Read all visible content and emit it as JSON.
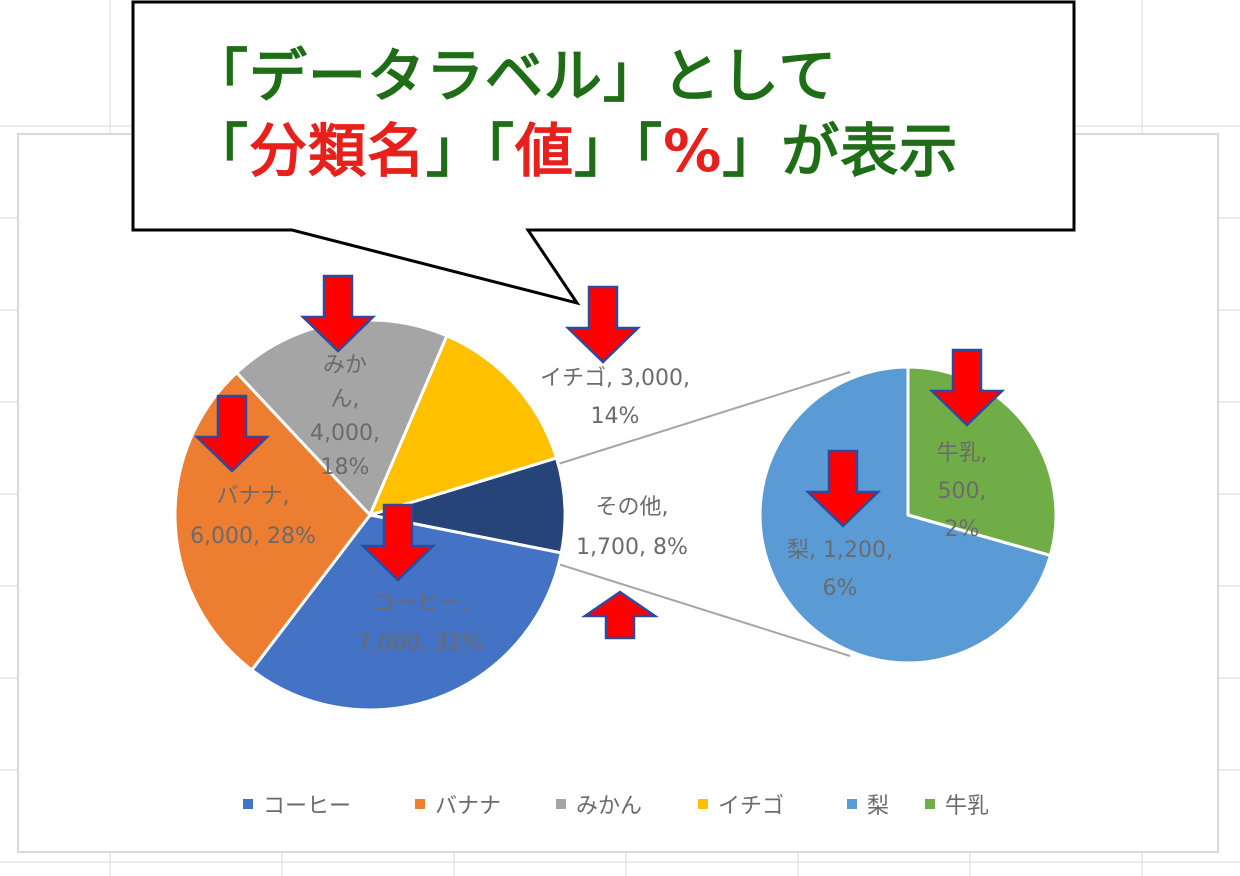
{
  "callout": {
    "line1": [
      {
        "text": "「データラベル」として",
        "color": "#1f6e17"
      }
    ],
    "line2": [
      {
        "text": "「",
        "color": "#1f6e17"
      },
      {
        "text": "分類名",
        "color": "#e8201c"
      },
      {
        "text": "」「",
        "color": "#1f6e17"
      },
      {
        "text": "値",
        "color": "#e8201c"
      },
      {
        "text": "」「",
        "color": "#1f6e17"
      },
      {
        "text": "%",
        "color": "#e8201c"
      },
      {
        "text": "」が表示",
        "color": "#1f6e17"
      }
    ]
  },
  "chart_data": {
    "type": "pie",
    "subtype": "pie-of-pie",
    "grid": false,
    "legend_position": "bottom",
    "main_pie": [
      {
        "name": "コーヒー",
        "value": 7000,
        "percent": 32,
        "color": "#4472c4",
        "label_lines": [
          "コーヒー,",
          "7,000, 32%"
        ]
      },
      {
        "name": "バナナ",
        "value": 6000,
        "percent": 28,
        "color": "#ed7d31",
        "label_lines": [
          "バナナ,",
          "6,000, 28%"
        ]
      },
      {
        "name": "みかん",
        "value": 4000,
        "percent": 18,
        "color": "#a5a5a5",
        "label_lines": [
          "みか",
          "ん,",
          "4,000,",
          "18%"
        ]
      },
      {
        "name": "イチゴ",
        "value": 3000,
        "percent": 14,
        "color": "#ffc000",
        "label_lines": [
          "イチゴ, 3,000,",
          "14%"
        ]
      },
      {
        "name": "その他",
        "value": 1700,
        "percent": 8,
        "color": "#264478",
        "label_lines": [
          "その他,",
          "1,700, 8%"
        ]
      }
    ],
    "secondary_pie": [
      {
        "name": "梨",
        "value": 1200,
        "percent": 6,
        "color": "#5b9bd5",
        "label_lines": [
          "梨, 1,200,",
          "6%"
        ]
      },
      {
        "name": "牛乳",
        "value": 500,
        "percent": 2,
        "color": "#70ad47",
        "label_lines": [
          "牛乳,",
          "500,",
          "2%"
        ]
      }
    ],
    "legend": [
      {
        "name": "コーヒー",
        "color": "#4472c4"
      },
      {
        "name": "バナナ",
        "color": "#ed7d31"
      },
      {
        "name": "みかん",
        "color": "#a5a5a5"
      },
      {
        "name": "イチゴ",
        "color": "#ffc000"
      },
      {
        "name": "梨",
        "color": "#5b9bd5"
      },
      {
        "name": "牛乳",
        "color": "#70ad47"
      }
    ],
    "arrow_color": "#ff0000"
  }
}
